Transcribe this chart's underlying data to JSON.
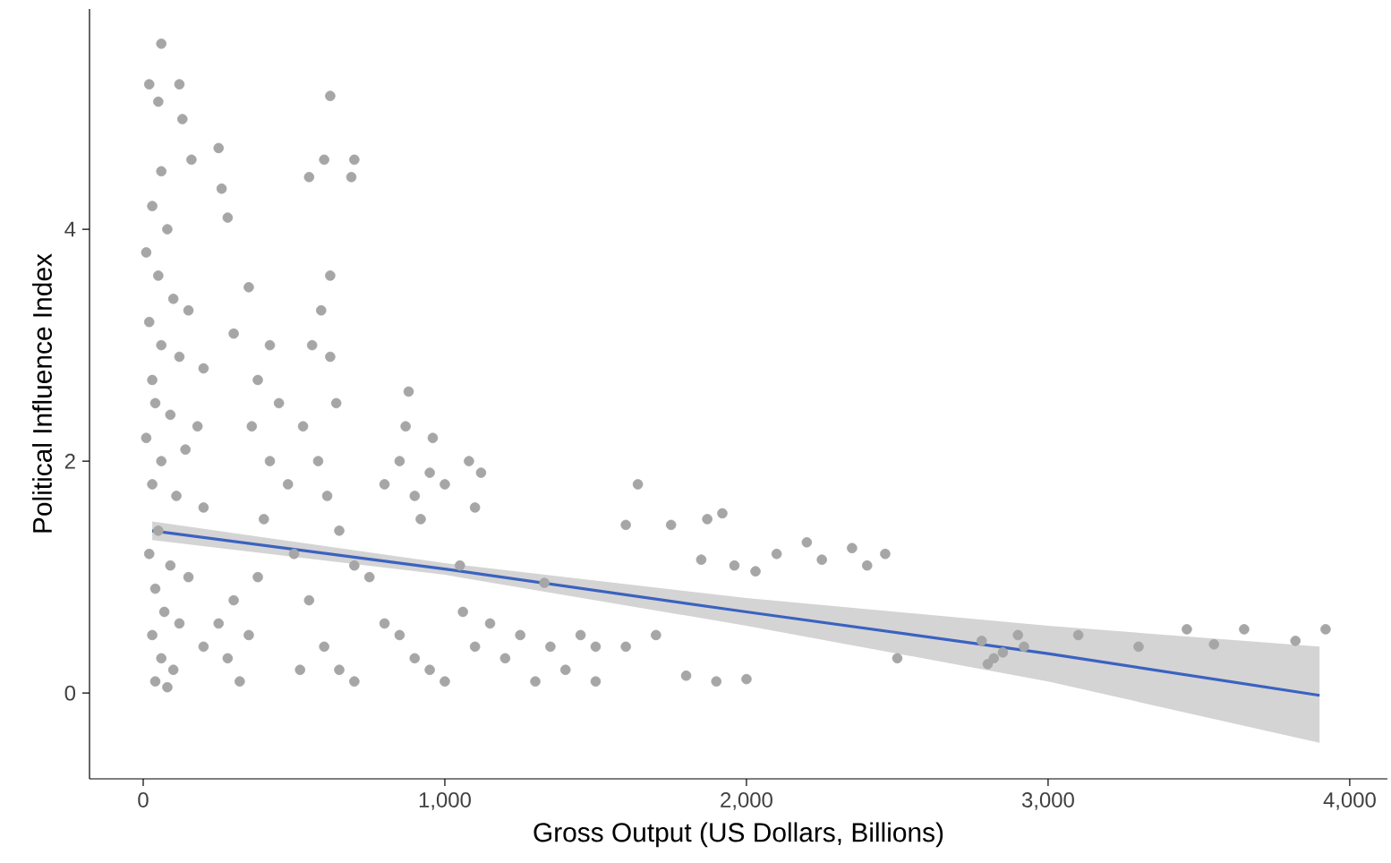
{
  "chart_data": {
    "type": "scatter",
    "xlabel": "Gross Output (US Dollars, Billions)",
    "ylabel": "Political Influence Index",
    "xlim": [
      -178,
      4125
    ],
    "ylim": [
      -0.74,
      5.9
    ],
    "xticks": [
      0,
      {
        "value": 1000,
        "label": "1,000"
      },
      {
        "value": 2000,
        "label": "2,000"
      },
      {
        "value": 3000,
        "label": "3,000"
      },
      {
        "value": 4000,
        "label": "4,000"
      }
    ],
    "yticks": [
      0,
      2,
      4
    ],
    "grid": false,
    "series": [
      {
        "color": "#a6a6a6",
        "marker": "circle",
        "x": [
          60,
          20,
          120,
          50,
          130,
          160,
          60,
          30,
          80,
          250,
          260,
          280,
          10,
          50,
          100,
          20,
          150,
          60,
          120,
          30,
          200,
          40,
          90,
          180,
          10,
          60,
          140,
          30,
          110,
          200,
          50,
          20,
          90,
          150,
          40,
          70,
          120,
          30,
          60,
          100,
          40,
          80,
          200,
          250,
          300,
          350,
          280,
          320,
          380,
          400,
          420,
          360,
          380,
          350,
          420,
          300,
          450,
          480,
          500,
          550,
          600,
          520,
          650,
          700,
          560,
          590,
          620,
          640,
          530,
          580,
          610,
          620,
          600,
          620,
          550,
          700,
          690,
          650,
          700,
          750,
          800,
          850,
          900,
          950,
          1000,
          800,
          850,
          900,
          870,
          920,
          950,
          880,
          960,
          1000,
          1050,
          1100,
          1080,
          1120,
          1060,
          1100,
          1150,
          1200,
          1250,
          1300,
          1350,
          1400,
          1450,
          1500,
          1600,
          1700,
          1800,
          1900,
          2000,
          1330,
          1640,
          1600,
          1750,
          1870,
          1920,
          1850,
          1960,
          2030,
          2100,
          2200,
          2250,
          2350,
          2400,
          2460,
          2500,
          2780,
          2820,
          2850,
          2900,
          2920,
          3100,
          3300,
          3460,
          3550,
          3650,
          3820,
          3920,
          2800,
          1500
        ],
        "values": [
          5.6,
          5.25,
          5.25,
          5.1,
          4.95,
          4.6,
          4.5,
          4.2,
          4.0,
          4.7,
          4.35,
          4.1,
          3.8,
          3.6,
          3.4,
          3.2,
          3.3,
          3.0,
          2.9,
          2.7,
          2.8,
          2.5,
          2.4,
          2.3,
          2.2,
          2.0,
          2.1,
          1.8,
          1.7,
          1.6,
          1.4,
          1.2,
          1.1,
          1.0,
          0.9,
          0.7,
          0.6,
          0.5,
          0.3,
          0.2,
          0.1,
          0.05,
          0.4,
          0.6,
          0.8,
          0.5,
          0.3,
          0.1,
          1.0,
          1.5,
          2.0,
          2.3,
          2.7,
          3.5,
          3.0,
          3.1,
          2.5,
          1.8,
          1.2,
          0.8,
          0.4,
          0.2,
          0.2,
          0.1,
          3.0,
          3.3,
          2.9,
          2.5,
          2.3,
          2.0,
          1.7,
          3.6,
          4.6,
          5.15,
          4.45,
          4.6,
          4.45,
          1.4,
          1.1,
          1.0,
          0.6,
          0.5,
          0.3,
          0.2,
          0.1,
          1.8,
          2.0,
          1.7,
          2.3,
          1.5,
          1.9,
          2.6,
          2.2,
          1.8,
          1.1,
          1.6,
          2.0,
          1.9,
          0.7,
          0.4,
          0.6,
          0.3,
          0.5,
          0.1,
          0.4,
          0.2,
          0.5,
          0.4,
          0.4,
          0.5,
          0.15,
          0.1,
          0.12,
          0.95,
          1.8,
          1.45,
          1.45,
          1.5,
          1.55,
          1.15,
          1.1,
          1.05,
          1.2,
          1.3,
          1.15,
          1.25,
          1.1,
          1.2,
          0.3,
          0.45,
          0.3,
          0.35,
          0.5,
          0.4,
          0.5,
          0.4,
          0.55,
          0.42,
          0.55,
          0.45,
          0.55,
          0.25,
          0.1
        ]
      },
      {
        "type": "line",
        "color": "#3b62c0",
        "marker": "none",
        "line_style": "solid",
        "x": [
          30,
          1000,
          2000,
          3000,
          3900
        ],
        "values": [
          1.4,
          1.07,
          0.7,
          0.34,
          -0.02
        ],
        "lower": [
          1.32,
          1.02,
          0.58,
          0.1,
          -0.43
        ],
        "upper": [
          1.48,
          1.12,
          0.82,
          0.58,
          0.4
        ]
      }
    ]
  }
}
